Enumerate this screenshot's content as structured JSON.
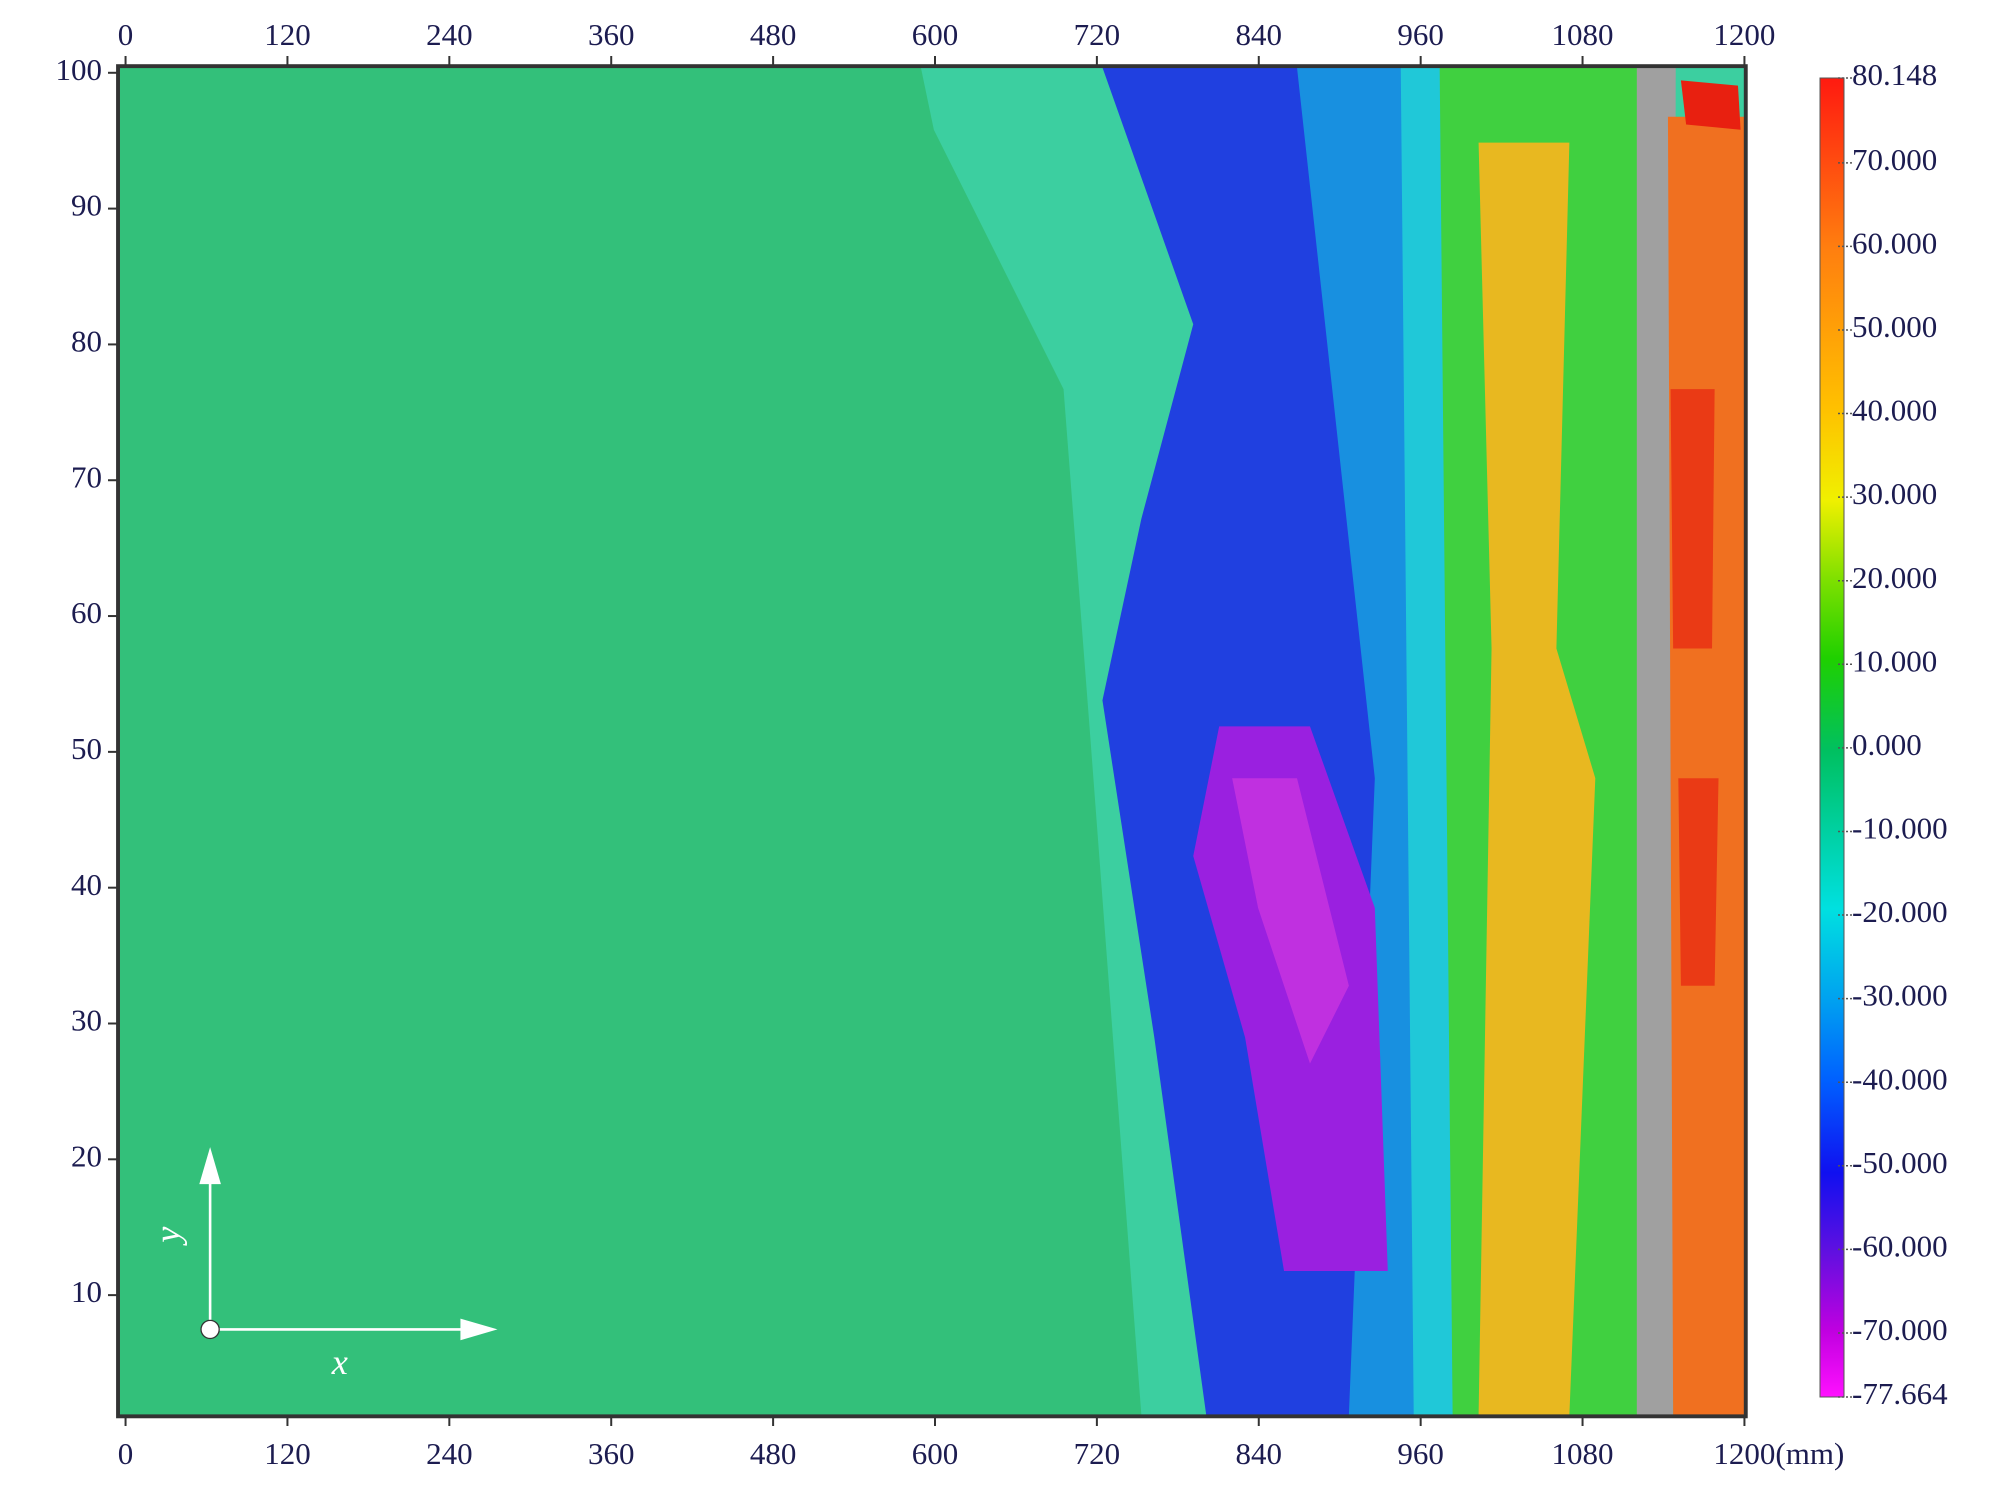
{
  "chart_data": {
    "type": "heatmap",
    "xlim": [
      -5.6,
      1201.9
    ],
    "ylim": [
      1.1,
      100.5
    ],
    "xticks": [
      0,
      120,
      240,
      360,
      480,
      600,
      720,
      840,
      960,
      1080,
      1200
    ],
    "x_unit": "(mm)",
    "yticks": [
      10,
      20,
      30,
      40,
      50,
      60,
      70,
      80,
      90,
      100
    ],
    "axis_icon": {
      "x": "x",
      "y": "y"
    },
    "colorbar": {
      "lim": [
        -77.664,
        80.148
      ],
      "ticks": [
        80.148,
        {
          "value": 70,
          "label": "70.000"
        },
        {
          "value": 60,
          "label": "60.000"
        },
        {
          "value": 50,
          "label": "50.000"
        },
        {
          "value": 40,
          "label": "40.000"
        },
        {
          "value": 30,
          "label": "30.000"
        },
        {
          "value": 20,
          "label": "20.000"
        },
        {
          "value": 10,
          "label": "10.000"
        },
        {
          "value": 0,
          "label": "0.000"
        },
        {
          "value": -10,
          "label": "-10.000"
        },
        {
          "value": -20,
          "label": "-20.000"
        },
        {
          "value": -30,
          "label": "-30.000"
        },
        {
          "value": -40,
          "label": "-40.000"
        },
        {
          "value": -50,
          "label": "-50.000"
        },
        {
          "value": -60,
          "label": "-60.000"
        },
        {
          "value": -70,
          "label": "-70.000"
        },
        -77.664
      ]
    }
  }
}
